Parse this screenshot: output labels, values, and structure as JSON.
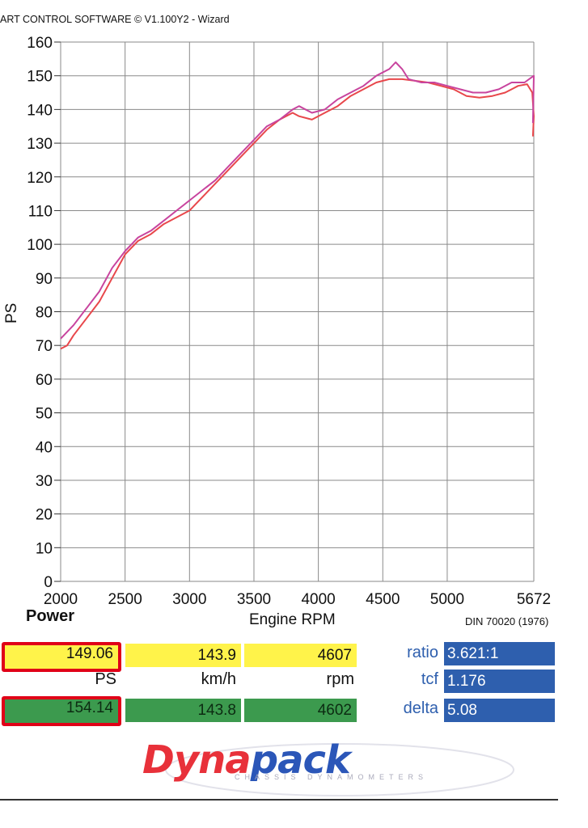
{
  "header": {
    "text": "ART CONTROL SOFTWARE © V1.100Y2 - Wizard"
  },
  "chart_data": {
    "type": "line",
    "xlim": [
      2000,
      5672
    ],
    "ylim": [
      0,
      160
    ],
    "x_ticks": [
      "2000",
      "2500",
      "3000",
      "3500",
      "4000",
      "4500",
      "5000",
      "5672"
    ],
    "y_ticks": [
      "0",
      "10",
      "20",
      "30",
      "40",
      "50",
      "60",
      "70",
      "80",
      "90",
      "100",
      "110",
      "120",
      "130",
      "140",
      "150",
      "160"
    ],
    "ylabel": "PS",
    "xlabel": "Engine RPM",
    "grid": true,
    "series": [
      {
        "color": "#e8474b",
        "points": [
          [
            2000,
            69
          ],
          [
            2050,
            70
          ],
          [
            2100,
            73
          ],
          [
            2200,
            78
          ],
          [
            2300,
            83
          ],
          [
            2400,
            90
          ],
          [
            2500,
            97
          ],
          [
            2600,
            101
          ],
          [
            2700,
            103
          ],
          [
            2800,
            106
          ],
          [
            2900,
            108
          ],
          [
            3000,
            110
          ],
          [
            3100,
            114
          ],
          [
            3200,
            118
          ],
          [
            3300,
            122
          ],
          [
            3400,
            126
          ],
          [
            3500,
            130
          ],
          [
            3600,
            134
          ],
          [
            3700,
            137
          ],
          [
            3800,
            139
          ],
          [
            3850,
            138
          ],
          [
            3950,
            137
          ],
          [
            4050,
            139
          ],
          [
            4150,
            141
          ],
          [
            4250,
            144
          ],
          [
            4350,
            146
          ],
          [
            4450,
            148
          ],
          [
            4550,
            149
          ],
          [
            4650,
            149
          ],
          [
            4750,
            148.5
          ],
          [
            4850,
            148
          ],
          [
            4950,
            147
          ],
          [
            5050,
            146
          ],
          [
            5150,
            144
          ],
          [
            5250,
            143.5
          ],
          [
            5350,
            144
          ],
          [
            5450,
            145
          ],
          [
            5550,
            147
          ],
          [
            5620,
            147.5
          ],
          [
            5660,
            145
          ],
          [
            5672,
            138
          ],
          [
            5665,
            132
          ]
        ]
      },
      {
        "color": "#c8449e",
        "points": [
          [
            2000,
            72
          ],
          [
            2100,
            76
          ],
          [
            2200,
            81
          ],
          [
            2300,
            86
          ],
          [
            2400,
            93
          ],
          [
            2500,
            98
          ],
          [
            2600,
            102
          ],
          [
            2700,
            104
          ],
          [
            2800,
            107
          ],
          [
            2900,
            110
          ],
          [
            3000,
            113
          ],
          [
            3100,
            116
          ],
          [
            3200,
            119
          ],
          [
            3300,
            123
          ],
          [
            3400,
            127
          ],
          [
            3500,
            131
          ],
          [
            3600,
            135
          ],
          [
            3700,
            137
          ],
          [
            3800,
            140
          ],
          [
            3850,
            141
          ],
          [
            3950,
            139
          ],
          [
            4050,
            140
          ],
          [
            4150,
            143
          ],
          [
            4250,
            145
          ],
          [
            4350,
            147
          ],
          [
            4450,
            150
          ],
          [
            4550,
            152
          ],
          [
            4600,
            154
          ],
          [
            4650,
            152
          ],
          [
            4700,
            149
          ],
          [
            4800,
            148
          ],
          [
            4900,
            148
          ],
          [
            5000,
            147
          ],
          [
            5100,
            146
          ],
          [
            5200,
            145
          ],
          [
            5300,
            145
          ],
          [
            5400,
            146
          ],
          [
            5500,
            148
          ],
          [
            5600,
            148
          ],
          [
            5672,
            150
          ],
          [
            5665,
            136
          ]
        ]
      }
    ]
  },
  "labels": {
    "power": "Power",
    "standard": "DIN 70020 (1976)"
  },
  "readouts": {
    "top": {
      "power": "149.06",
      "speed": "143.9",
      "rpm": "4607"
    },
    "units": {
      "power": "PS",
      "speed": "km/h",
      "rpm": "rpm"
    },
    "bottom": {
      "power": "154.14",
      "speed": "143.8",
      "rpm": "4602"
    }
  },
  "meta": {
    "ratio_label": "ratio",
    "ratio_value": "3.621:1",
    "tcf_label": "tcf",
    "tcf_value": "1.176",
    "delta_label": "delta",
    "delta_value": "5.08"
  },
  "logo": {
    "brand_part1": "Dyna",
    "brand_part2": "pack",
    "tagline": "CHASSIS DYNAMOMETERS"
  },
  "colors": {
    "highlight_yellow": "#fff34a",
    "highlight_green": "#3c9a4e",
    "meta_blue": "#2e5fae",
    "frame_red": "#e00018"
  }
}
